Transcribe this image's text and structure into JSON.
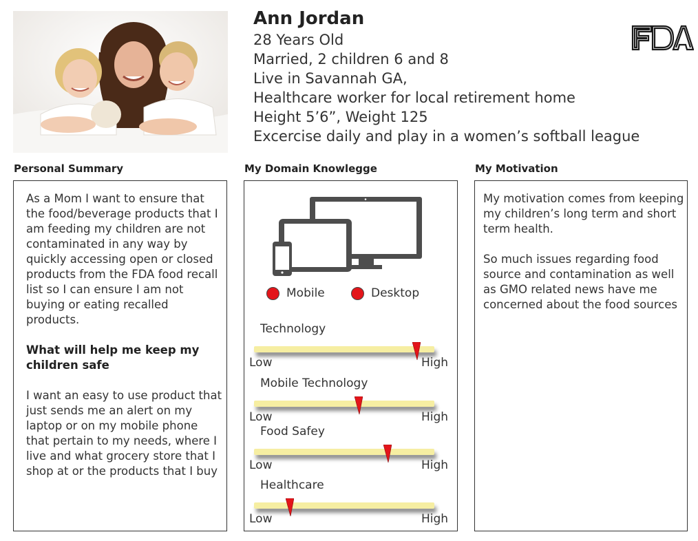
{
  "header": {
    "name": "Ann Jordan",
    "lines": [
      "28 Years Old",
      "Married, 2 children 6 and 8",
      "Live in Savannah GA,",
      "Healthcare worker for local retirement home",
      "Height 5’6”, Weight 125",
      "Excercise daily and play in a women’s softball league"
    ],
    "logo_text": "FDA"
  },
  "sections": {
    "summary_title": "Personal Summary",
    "domain_title": "My Domain Knowlegge",
    "motivation_title": "My Motivation"
  },
  "summary": {
    "para1": "As a Mom I  want to ensure that the food/beverage products that I am feeding my children are not contaminated in any way by quickly accessing open or closed products from the FDA food recall list  so I can ensure I am not buying or eating recalled products.",
    "subhead": "What will help me keep my children safe",
    "para2": "I want an easy to use product that just sends me an alert on my laptop or on my mobile phone that pertain to my needs, where I live and what grocery store that I shop at or the products that I buy"
  },
  "domain": {
    "devices_icon": "devices-icon",
    "legend": [
      {
        "label": "Mobile",
        "color": "#e3151a"
      },
      {
        "label": "Desktop",
        "color": "#e3151a"
      }
    ],
    "low_label": "Low",
    "high_label": "High",
    "meters": [
      {
        "label": "Technology",
        "level": 0.9
      },
      {
        "label": "Mobile Technology",
        "level": 0.58
      },
      {
        "label": "Food Safey",
        "level": 0.74
      },
      {
        "label": "Healthcare",
        "level": 0.2
      }
    ]
  },
  "motivation": {
    "para1": "My motivation comes from keeping my children’s long term and short term health.",
    "para2": "So much issues regarding food source and contamination as well as GMO related news have me concerned about the food sources"
  },
  "colors": {
    "marker": "#e3151a",
    "track": "#f6eea2",
    "border": "#333333"
  }
}
